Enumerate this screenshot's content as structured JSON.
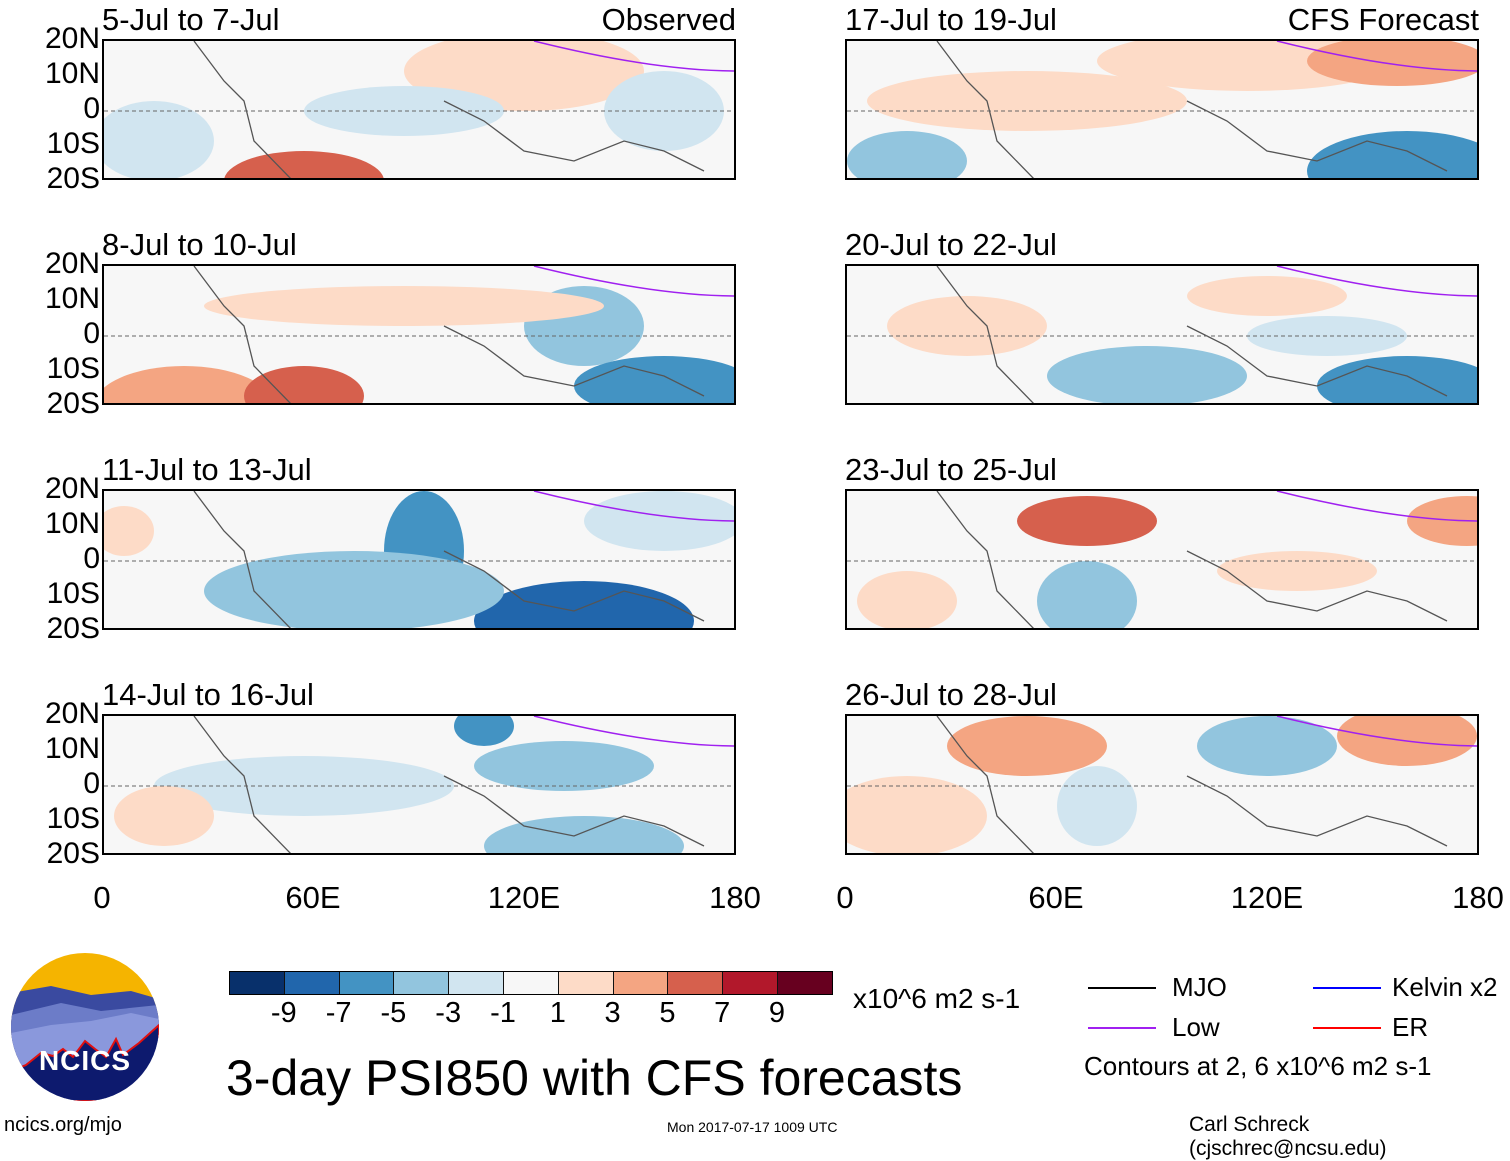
{
  "header": {
    "observed_label": "Observed",
    "forecast_label": "CFS Forecast"
  },
  "panels": {
    "observed": [
      {
        "title": "5-Jul to 7-Jul"
      },
      {
        "title": "8-Jul to 10-Jul"
      },
      {
        "title": "11-Jul to 13-Jul"
      },
      {
        "title": "14-Jul to 16-Jul"
      }
    ],
    "forecast": [
      {
        "title": "17-Jul to 19-Jul"
      },
      {
        "title": "20-Jul to 22-Jul"
      },
      {
        "title": "23-Jul to 25-Jul"
      },
      {
        "title": "26-Jul to 28-Jul"
      }
    ]
  },
  "axes": {
    "lat_labels": [
      "20N",
      "10N",
      "0",
      "10S",
      "20S"
    ],
    "lon_labels": [
      "0",
      "60E",
      "120E",
      "180"
    ]
  },
  "colorbar": {
    "colors": [
      "#08306b",
      "#2166ac",
      "#4393c3",
      "#92c5de",
      "#d1e5f0",
      "#f7f7f7",
      "#fddbc7",
      "#f4a582",
      "#d6604d",
      "#b2182b",
      "#67001f"
    ],
    "labels": [
      "-9",
      "-7",
      "-5",
      "-3",
      "-1",
      "1",
      "3",
      "5",
      "7",
      "9"
    ],
    "units": "x10^6 m2 s-1"
  },
  "legend": {
    "items": [
      {
        "label": "MJO",
        "color": "#000000"
      },
      {
        "label": "Kelvin x2",
        "color": "#0000ff"
      },
      {
        "label": "Low",
        "color": "#a020f0"
      },
      {
        "label": "ER",
        "color": "#ff0000"
      }
    ],
    "contours_note": "Contours at 2, 6 x10^6 m2 s-1"
  },
  "footer": {
    "main_title": "3-day PSI850 with CFS forecasts",
    "logo_text": "NCICS",
    "url": "ncics.org/mjo",
    "timestamp": "Mon 2017-07-17 1009 UTC",
    "credit": "Carl Schreck (cjschrec@ncsu.edu)"
  }
}
